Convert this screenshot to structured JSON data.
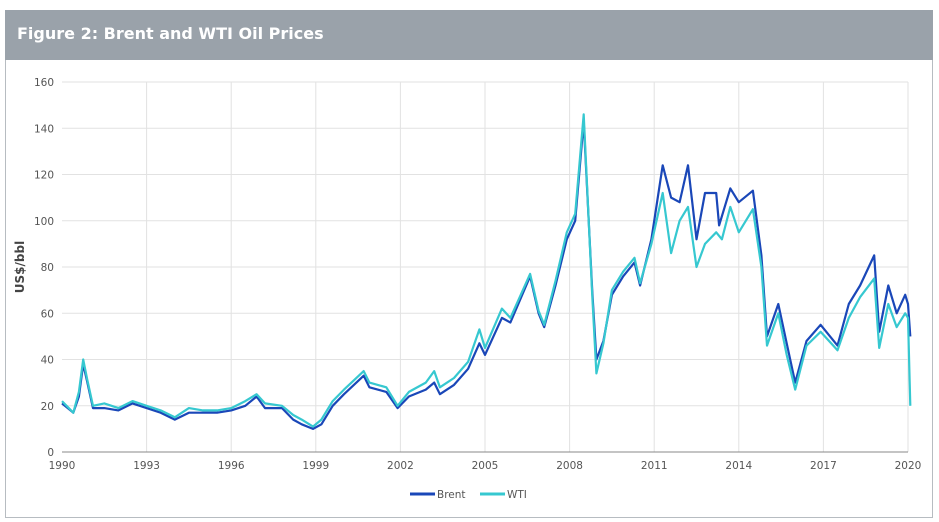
{
  "title": "Figure 2: Brent and WTI Oil Prices",
  "chart_data": {
    "type": "line",
    "title": "Figure 2: Brent and WTI Oil Prices",
    "xlabel": "",
    "ylabel": "US$/bbl",
    "xlim": [
      1990,
      2020
    ],
    "ylim": [
      0,
      160
    ],
    "x_ticks": [
      "1990",
      "1993",
      "1996",
      "1999",
      "2002",
      "2005",
      "2008",
      "2011",
      "2014",
      "2017",
      "2020"
    ],
    "y_ticks": [
      "0",
      "20",
      "40",
      "60",
      "80",
      "100",
      "120",
      "140",
      "160"
    ],
    "grid": true,
    "legend_position": "bottom",
    "series": [
      {
        "name": "Brent",
        "color": "#1a47b8",
        "points": [
          [
            1990.0,
            21
          ],
          [
            1990.4,
            17
          ],
          [
            1990.6,
            24
          ],
          [
            1990.75,
            38
          ],
          [
            1990.9,
            30
          ],
          [
            1991.1,
            19
          ],
          [
            1991.5,
            19
          ],
          [
            1992.0,
            18
          ],
          [
            1992.5,
            21
          ],
          [
            1993.0,
            19
          ],
          [
            1993.5,
            17
          ],
          [
            1994.0,
            14
          ],
          [
            1994.5,
            17
          ],
          [
            1995.0,
            17
          ],
          [
            1995.5,
            17
          ],
          [
            1996.0,
            18
          ],
          [
            1996.5,
            20
          ],
          [
            1996.9,
            24
          ],
          [
            1997.2,
            19
          ],
          [
            1997.8,
            19
          ],
          [
            1998.2,
            14
          ],
          [
            1998.5,
            12
          ],
          [
            1998.9,
            10
          ],
          [
            1999.2,
            12
          ],
          [
            1999.6,
            20
          ],
          [
            2000.0,
            25
          ],
          [
            2000.7,
            33
          ],
          [
            2000.9,
            28
          ],
          [
            2001.5,
            26
          ],
          [
            2001.9,
            19
          ],
          [
            2002.3,
            24
          ],
          [
            2002.9,
            27
          ],
          [
            2003.2,
            30
          ],
          [
            2003.4,
            25
          ],
          [
            2003.9,
            29
          ],
          [
            2004.4,
            36
          ],
          [
            2004.8,
            47
          ],
          [
            2005.0,
            42
          ],
          [
            2005.6,
            58
          ],
          [
            2005.9,
            56
          ],
          [
            2006.6,
            76
          ],
          [
            2006.9,
            60
          ],
          [
            2007.1,
            54
          ],
          [
            2007.5,
            72
          ],
          [
            2007.9,
            92
          ],
          [
            2008.2,
            100
          ],
          [
            2008.5,
            143
          ],
          [
            2008.8,
            70
          ],
          [
            2008.95,
            40
          ],
          [
            2009.2,
            48
          ],
          [
            2009.5,
            68
          ],
          [
            2009.9,
            76
          ],
          [
            2010.3,
            82
          ],
          [
            2010.5,
            72
          ],
          [
            2010.9,
            92
          ],
          [
            2011.3,
            124
          ],
          [
            2011.6,
            110
          ],
          [
            2011.9,
            108
          ],
          [
            2012.2,
            124
          ],
          [
            2012.5,
            92
          ],
          [
            2012.8,
            112
          ],
          [
            2013.2,
            112
          ],
          [
            2013.3,
            98
          ],
          [
            2013.7,
            114
          ],
          [
            2014.0,
            108
          ],
          [
            2014.5,
            113
          ],
          [
            2014.8,
            85
          ],
          [
            2015.0,
            50
          ],
          [
            2015.4,
            64
          ],
          [
            2015.7,
            47
          ],
          [
            2016.0,
            30
          ],
          [
            2016.4,
            48
          ],
          [
            2016.9,
            55
          ],
          [
            2017.5,
            46
          ],
          [
            2017.9,
            64
          ],
          [
            2018.3,
            72
          ],
          [
            2018.8,
            85
          ],
          [
            2018.98,
            52
          ],
          [
            2019.3,
            72
          ],
          [
            2019.6,
            60
          ],
          [
            2019.9,
            68
          ],
          [
            2020.0,
            64
          ],
          [
            2020.08,
            50
          ]
        ]
      },
      {
        "name": "WTI",
        "color": "#36c8d0",
        "points": [
          [
            1990.0,
            22
          ],
          [
            1990.4,
            17
          ],
          [
            1990.6,
            26
          ],
          [
            1990.75,
            40
          ],
          [
            1990.9,
            31
          ],
          [
            1991.1,
            20
          ],
          [
            1991.5,
            21
          ],
          [
            1992.0,
            19
          ],
          [
            1992.5,
            22
          ],
          [
            1993.0,
            20
          ],
          [
            1993.5,
            18
          ],
          [
            1994.0,
            15
          ],
          [
            1994.5,
            19
          ],
          [
            1995.0,
            18
          ],
          [
            1995.5,
            18
          ],
          [
            1996.0,
            19
          ],
          [
            1996.5,
            22
          ],
          [
            1996.9,
            25
          ],
          [
            1997.2,
            21
          ],
          [
            1997.8,
            20
          ],
          [
            1998.2,
            16
          ],
          [
            1998.5,
            14
          ],
          [
            1998.9,
            11
          ],
          [
            1999.2,
            14
          ],
          [
            1999.6,
            22
          ],
          [
            2000.0,
            27
          ],
          [
            2000.7,
            35
          ],
          [
            2000.9,
            30
          ],
          [
            2001.5,
            28
          ],
          [
            2001.9,
            20
          ],
          [
            2002.3,
            26
          ],
          [
            2002.9,
            30
          ],
          [
            2003.2,
            35
          ],
          [
            2003.4,
            28
          ],
          [
            2003.9,
            32
          ],
          [
            2004.4,
            39
          ],
          [
            2004.8,
            53
          ],
          [
            2005.0,
            45
          ],
          [
            2005.6,
            62
          ],
          [
            2005.9,
            58
          ],
          [
            2006.6,
            77
          ],
          [
            2006.9,
            61
          ],
          [
            2007.1,
            55
          ],
          [
            2007.5,
            74
          ],
          [
            2007.9,
            95
          ],
          [
            2008.2,
            103
          ],
          [
            2008.5,
            146
          ],
          [
            2008.8,
            68
          ],
          [
            2008.95,
            34
          ],
          [
            2009.2,
            47
          ],
          [
            2009.5,
            70
          ],
          [
            2009.9,
            78
          ],
          [
            2010.3,
            84
          ],
          [
            2010.5,
            73
          ],
          [
            2010.9,
            90
          ],
          [
            2011.3,
            112
          ],
          [
            2011.6,
            86
          ],
          [
            2011.9,
            100
          ],
          [
            2012.2,
            106
          ],
          [
            2012.5,
            80
          ],
          [
            2012.8,
            90
          ],
          [
            2013.2,
            95
          ],
          [
            2013.4,
            92
          ],
          [
            2013.7,
            106
          ],
          [
            2014.0,
            95
          ],
          [
            2014.5,
            105
          ],
          [
            2014.8,
            80
          ],
          [
            2015.0,
            46
          ],
          [
            2015.4,
            60
          ],
          [
            2015.7,
            42
          ],
          [
            2016.0,
            27
          ],
          [
            2016.4,
            46
          ],
          [
            2016.9,
            52
          ],
          [
            2017.5,
            44
          ],
          [
            2017.9,
            58
          ],
          [
            2018.3,
            67
          ],
          [
            2018.8,
            75
          ],
          [
            2018.98,
            45
          ],
          [
            2019.3,
            64
          ],
          [
            2019.6,
            54
          ],
          [
            2019.9,
            60
          ],
          [
            2020.0,
            58
          ],
          [
            2020.08,
            20
          ]
        ]
      }
    ]
  }
}
